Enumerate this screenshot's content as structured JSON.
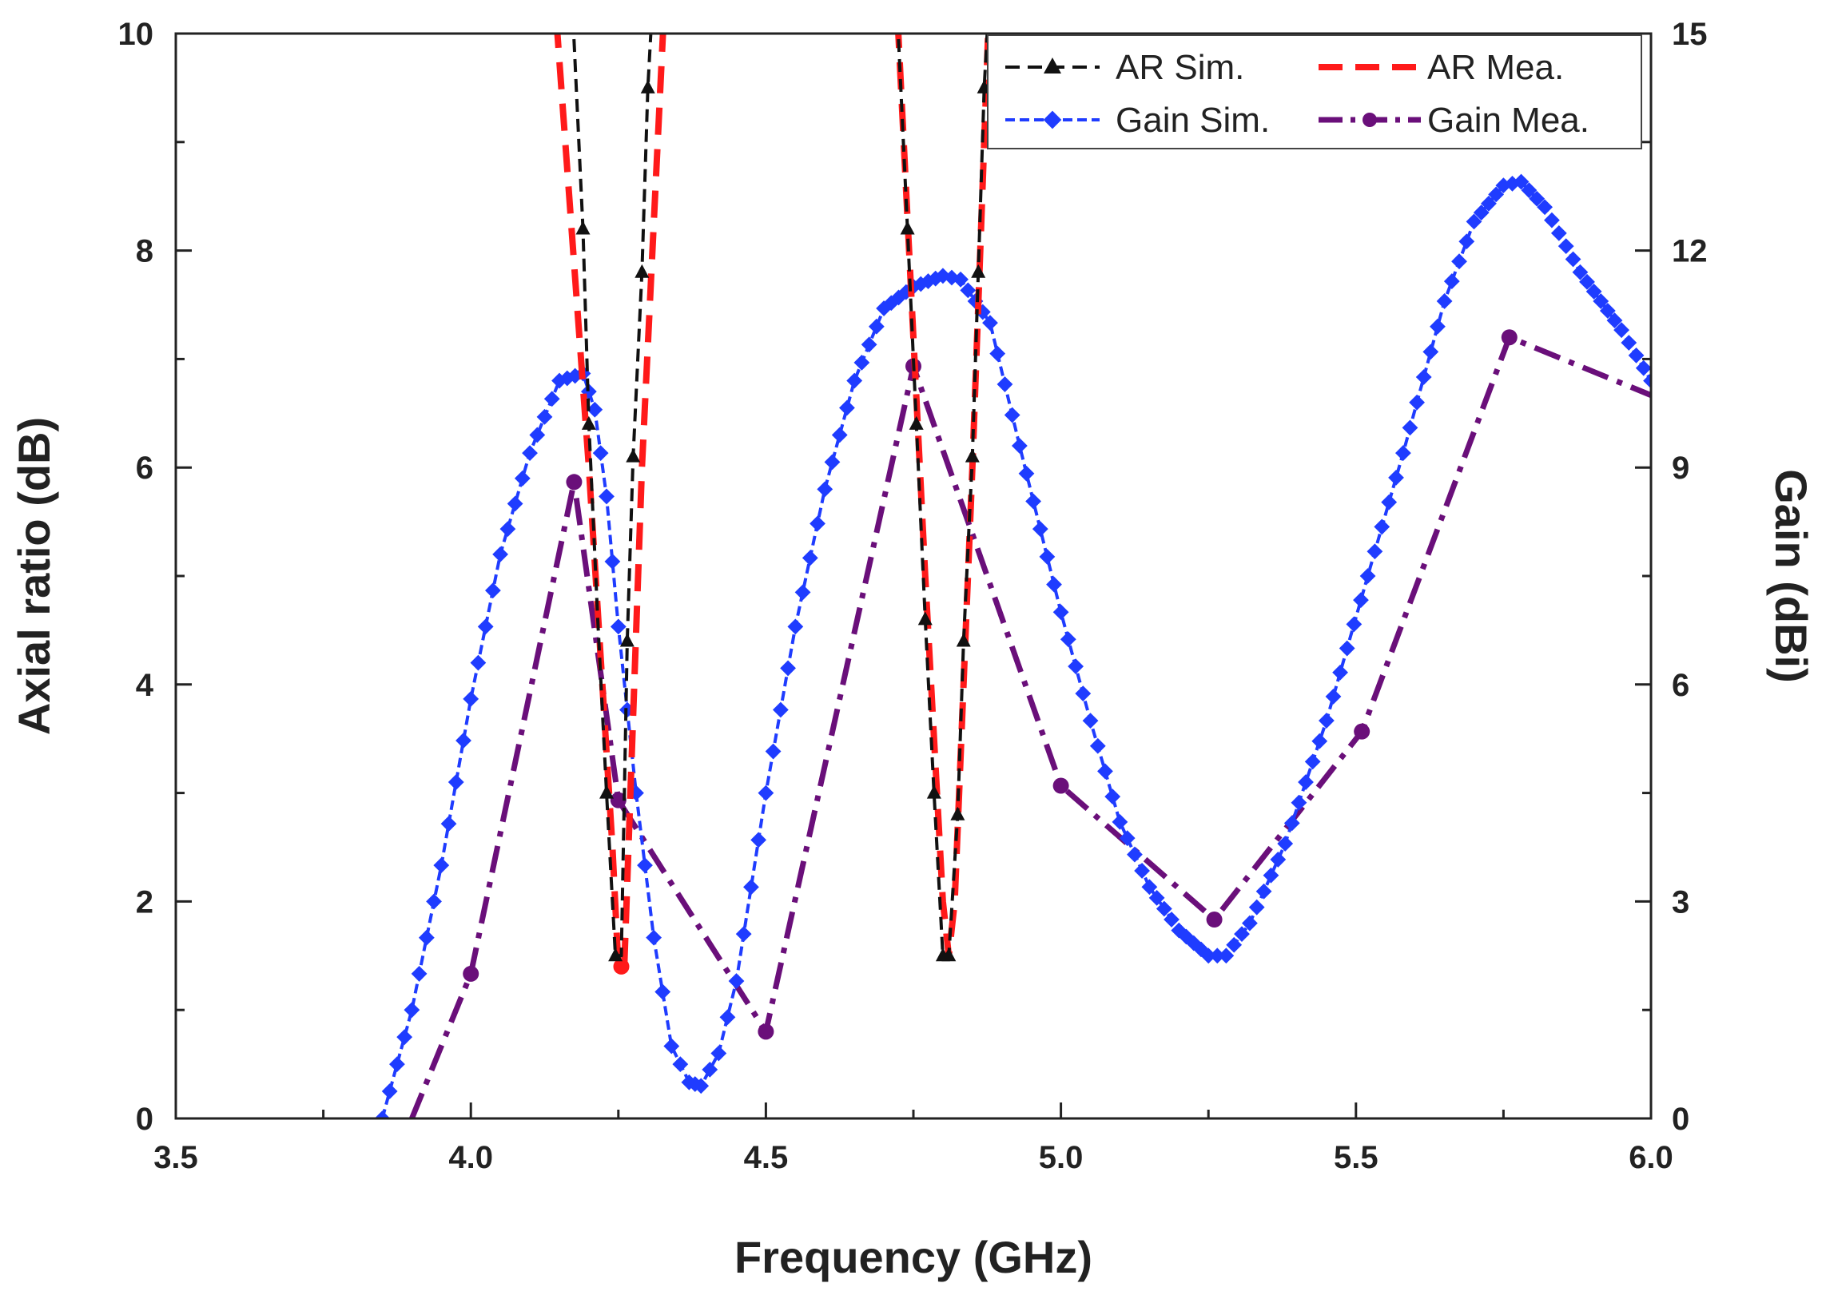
{
  "chart_data": {
    "type": "line",
    "title": "",
    "xlabel": "Frequency (GHz)",
    "ylabel_left": "Axial ratio (dB)",
    "ylabel_right": "Gain (dBi)",
    "xlim": [
      3.5,
      6.0
    ],
    "ylim_left": [
      0,
      10
    ],
    "ylim_right": [
      0,
      15
    ],
    "xticks": [
      "3.5",
      "4.0",
      "4.5",
      "5.0",
      "5.5",
      "6.0"
    ],
    "yticks_left": [
      "0",
      "2",
      "4",
      "6",
      "8",
      "10"
    ],
    "yticks_right": [
      "0",
      "3",
      "6",
      "9",
      "12",
      "15"
    ],
    "grid": false,
    "legend_position": "top-right",
    "colors": {
      "ar_sim": "#111111",
      "ar_mea": "#ff1a1a",
      "gain_sim": "#1f3cff",
      "gain_mea": "#6a0f7a"
    },
    "series": [
      {
        "name": "AR Sim.",
        "axis": "left",
        "segments": [
          [
            [
              4.17,
              10.5
            ],
            [
              4.19,
              8.2
            ],
            [
              4.2,
              6.4
            ],
            [
              4.215,
              4.6
            ],
            [
              4.23,
              3.0
            ],
            [
              4.245,
              1.5
            ],
            [
              4.255,
              1.5
            ],
            [
              4.265,
              4.4
            ],
            [
              4.275,
              6.1
            ],
            [
              4.29,
              7.8
            ],
            [
              4.3,
              9.5
            ],
            [
              4.31,
              10.5
            ]
          ],
          [
            [
              4.72,
              10.5
            ],
            [
              4.74,
              8.2
            ],
            [
              4.755,
              6.4
            ],
            [
              4.77,
              4.6
            ],
            [
              4.785,
              3.0
            ],
            [
              4.8,
              1.5
            ],
            [
              4.81,
              1.5
            ],
            [
              4.825,
              2.8
            ],
            [
              4.835,
              4.4
            ],
            [
              4.85,
              6.1
            ],
            [
              4.86,
              7.8
            ],
            [
              4.87,
              9.5
            ],
            [
              4.88,
              10.5
            ]
          ]
        ],
        "markers": [
          [
            4.19,
            8.2
          ],
          [
            4.2,
            6.4
          ],
          [
            4.23,
            3.0
          ],
          [
            4.245,
            1.5
          ],
          [
            4.265,
            4.4
          ],
          [
            4.275,
            6.1
          ],
          [
            4.29,
            7.8
          ],
          [
            4.3,
            9.5
          ],
          [
            4.74,
            8.2
          ],
          [
            4.755,
            6.4
          ],
          [
            4.77,
            4.6
          ],
          [
            4.785,
            3.0
          ],
          [
            4.8,
            1.5
          ],
          [
            4.81,
            1.5
          ],
          [
            4.825,
            2.8
          ],
          [
            4.835,
            4.4
          ],
          [
            4.85,
            6.1
          ],
          [
            4.86,
            7.8
          ],
          [
            4.87,
            9.5
          ]
        ]
      },
      {
        "name": "AR Mea.",
        "axis": "left",
        "segments": [
          [
            [
              4.14,
              10.5
            ],
            [
              4.2,
              6.0
            ],
            [
              4.24,
              2.5
            ],
            [
              4.25,
              1.4
            ],
            [
              4.26,
              1.4
            ],
            [
              4.29,
              6.0
            ],
            [
              4.33,
              10.5
            ]
          ],
          [
            [
              4.72,
              10.5
            ],
            [
              4.77,
              5.0
            ],
            [
              4.8,
              2.0
            ],
            [
              4.81,
              1.5
            ],
            [
              4.82,
              2.0
            ],
            [
              4.85,
              6.0
            ],
            [
              4.88,
              10.5
            ]
          ]
        ],
        "markers": [
          [
            4.255,
            1.4
          ]
        ]
      },
      {
        "name": "Gain Sim.",
        "axis": "right",
        "points": [
          [
            3.85,
            0.0
          ],
          [
            3.9,
            1.5
          ],
          [
            3.95,
            3.5
          ],
          [
            4.0,
            5.8
          ],
          [
            4.05,
            7.8
          ],
          [
            4.1,
            9.2
          ],
          [
            4.15,
            10.2
          ],
          [
            4.19,
            10.3
          ],
          [
            4.21,
            9.8
          ],
          [
            4.23,
            8.6
          ],
          [
            4.25,
            6.8
          ],
          [
            4.28,
            4.5
          ],
          [
            4.31,
            2.5
          ],
          [
            4.34,
            1.0
          ],
          [
            4.37,
            0.5
          ],
          [
            4.39,
            0.45
          ],
          [
            4.42,
            0.9
          ],
          [
            4.45,
            1.9
          ],
          [
            4.5,
            4.5
          ],
          [
            4.55,
            6.8
          ],
          [
            4.6,
            8.7
          ],
          [
            4.65,
            10.2
          ],
          [
            4.7,
            11.2
          ],
          [
            4.75,
            11.5
          ],
          [
            4.8,
            11.65
          ],
          [
            4.83,
            11.6
          ],
          [
            4.88,
            11.0
          ],
          [
            4.93,
            9.3
          ],
          [
            5.0,
            7.0
          ],
          [
            5.05,
            5.5
          ],
          [
            5.1,
            4.1
          ],
          [
            5.15,
            3.2
          ],
          [
            5.2,
            2.6
          ],
          [
            5.25,
            2.25
          ],
          [
            5.28,
            2.25
          ],
          [
            5.32,
            2.7
          ],
          [
            5.38,
            3.8
          ],
          [
            5.45,
            5.5
          ],
          [
            5.52,
            7.5
          ],
          [
            5.58,
            9.2
          ],
          [
            5.65,
            11.3
          ],
          [
            5.7,
            12.4
          ],
          [
            5.75,
            12.9
          ],
          [
            5.78,
            12.95
          ],
          [
            5.82,
            12.6
          ],
          [
            5.88,
            11.7
          ],
          [
            5.95,
            10.9
          ],
          [
            6.0,
            10.2
          ]
        ]
      },
      {
        "name": "Gain Mea.",
        "axis": "right",
        "points": [
          [
            3.9,
            0.0
          ],
          [
            4.0,
            2.0
          ],
          [
            4.175,
            8.8
          ],
          [
            4.25,
            4.4
          ],
          [
            4.5,
            1.2
          ],
          [
            4.75,
            10.4
          ],
          [
            5.0,
            4.6
          ],
          [
            5.26,
            2.75
          ],
          [
            5.51,
            5.35
          ],
          [
            5.76,
            10.8
          ],
          [
            6.0,
            10.0
          ]
        ],
        "markers": [
          [
            4.0,
            2.0
          ],
          [
            4.175,
            8.8
          ],
          [
            4.25,
            4.4
          ],
          [
            4.5,
            1.2
          ],
          [
            4.75,
            10.4
          ],
          [
            5.0,
            4.6
          ],
          [
            5.26,
            2.75
          ],
          [
            5.51,
            5.35
          ],
          [
            5.76,
            10.8
          ]
        ]
      }
    ]
  }
}
